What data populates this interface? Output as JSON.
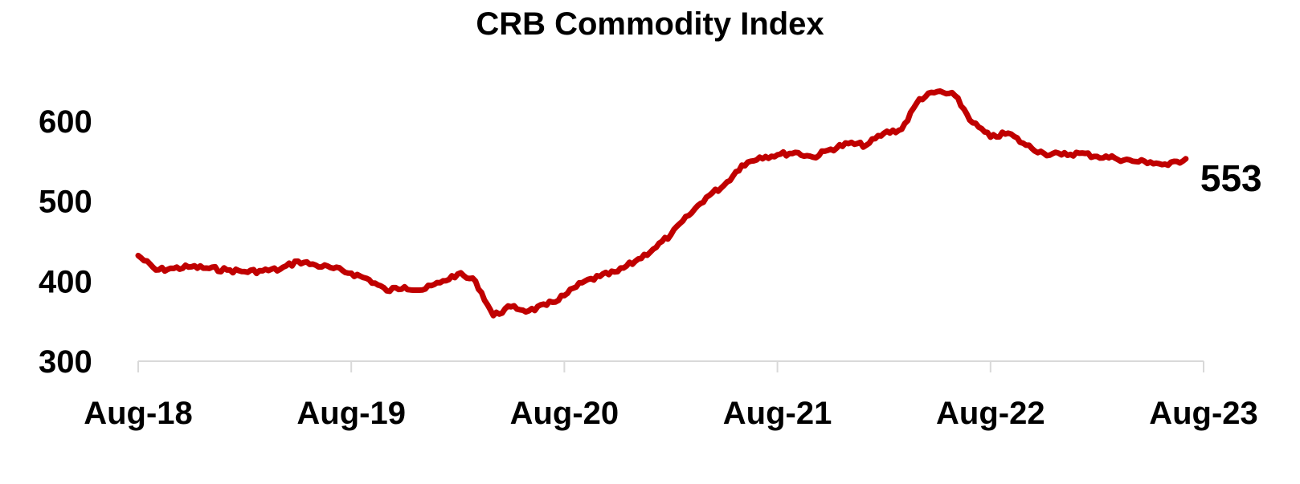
{
  "chart_data": {
    "type": "line",
    "title": "CRB Commodity Index",
    "xlabel": "",
    "ylabel": "",
    "ylim": [
      300,
      650
    ],
    "yticks": [
      300,
      400,
      500,
      600
    ],
    "xticks": [
      "Aug-18",
      "Aug-19",
      "Aug-20",
      "Aug-21",
      "Aug-22",
      "Aug-23"
    ],
    "xlim": [
      "2018-08",
      "2023-08"
    ],
    "grid": false,
    "legend": "none",
    "end_label": "553",
    "colors": {
      "line": "#C00000",
      "axis": "#D9D9D9",
      "text": "#000000"
    },
    "series": [
      {
        "x": [
          "2018-08-01",
          "2018-09-01",
          "2018-10-01",
          "2018-11-01",
          "2018-12-01",
          "2019-01-01",
          "2019-02-01",
          "2019-03-01",
          "2019-04-01",
          "2019-05-01",
          "2019-06-01",
          "2019-07-01",
          "2019-08-01",
          "2019-09-01",
          "2019-10-01",
          "2019-11-01",
          "2019-12-01",
          "2020-01-01",
          "2020-02-01",
          "2020-03-01",
          "2020-04-01",
          "2020-05-01",
          "2020-06-01",
          "2020-07-01",
          "2020-08-01",
          "2020-09-01",
          "2020-10-01",
          "2020-11-01",
          "2020-12-01",
          "2021-01-01",
          "2021-02-01",
          "2021-03-01",
          "2021-04-01",
          "2021-05-01",
          "2021-06-01",
          "2021-07-01",
          "2021-08-01",
          "2021-09-01",
          "2021-10-01",
          "2021-11-01",
          "2021-12-01",
          "2022-01-01",
          "2022-02-01",
          "2022-03-01",
          "2022-04-01",
          "2022-05-01",
          "2022-06-01",
          "2022-07-01",
          "2022-08-01",
          "2022-09-01",
          "2022-10-01",
          "2022-11-01",
          "2022-12-01",
          "2023-01-01",
          "2023-02-01",
          "2023-03-01",
          "2023-04-01",
          "2023-05-01",
          "2023-06-01",
          "2023-07-01"
        ],
        "values": [
          432,
          414,
          416,
          418,
          416,
          414,
          412,
          413,
          415,
          425,
          420,
          416,
          410,
          402,
          388,
          393,
          389,
          398,
          409,
          400,
          357,
          368,
          363,
          370,
          382,
          398,
          406,
          412,
          425,
          440,
          458,
          482,
          505,
          520,
          545,
          555,
          558,
          561,
          555,
          565,
          572,
          570,
          585,
          590,
          628,
          637,
          632,
          598,
          580,
          585,
          570,
          560,
          558,
          560,
          556,
          554,
          550,
          549,
          545,
          553
        ]
      }
    ]
  }
}
